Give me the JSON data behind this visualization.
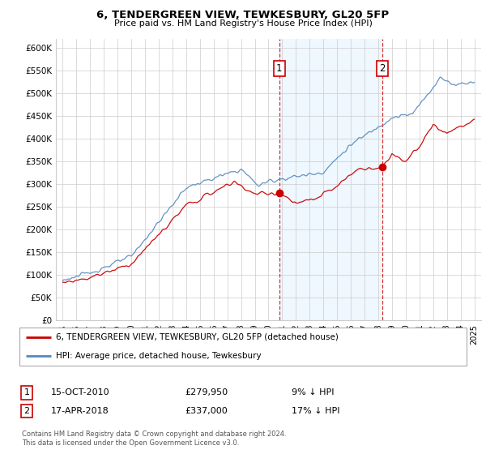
{
  "title": "6, TENDERGREEN VIEW, TEWKESBURY, GL20 5FP",
  "subtitle": "Price paid vs. HM Land Registry's House Price Index (HPI)",
  "legend_line1": "6, TENDERGREEN VIEW, TEWKESBURY, GL20 5FP (detached house)",
  "legend_line2": "HPI: Average price, detached house, Tewkesbury",
  "footnote1": "Contains HM Land Registry data © Crown copyright and database right 2024.",
  "footnote2": "This data is licensed under the Open Government Licence v3.0.",
  "sale1_label": "1",
  "sale1_date": "15-OCT-2010",
  "sale1_price": "£279,950",
  "sale1_hpi": "9% ↓ HPI",
  "sale1_year": 2010.79,
  "sale1_value": 279950,
  "sale2_label": "2",
  "sale2_date": "17-APR-2018",
  "sale2_price": "£337,000",
  "sale2_hpi": "17% ↓ HPI",
  "sale2_year": 2018.29,
  "sale2_value": 337000,
  "red_color": "#cc0000",
  "blue_color": "#5588bb",
  "blue_fill": "#ddeeff",
  "ylim_min": 0,
  "ylim_max": 620000,
  "yticks": [
    0,
    50000,
    100000,
    150000,
    200000,
    250000,
    300000,
    350000,
    400000,
    450000,
    500000,
    550000,
    600000
  ],
  "xlim_min": 1994.5,
  "xlim_max": 2025.5
}
